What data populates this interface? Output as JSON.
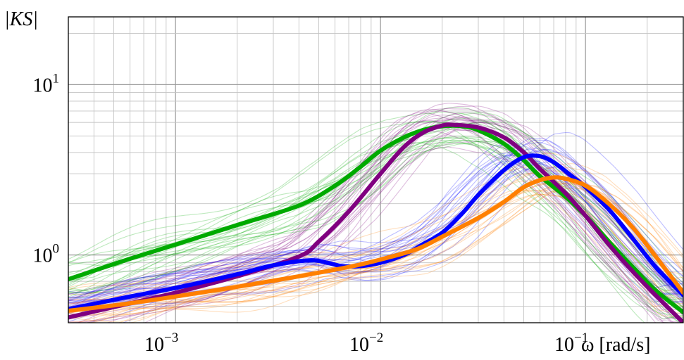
{
  "chart_data": {
    "type": "line",
    "xlabel": "ω [rad/s]",
    "ylabel": "|KS|",
    "xscale": "log",
    "yscale": "log",
    "xlim": [
      0.0003,
      0.3
    ],
    "ylim": [
      0.4,
      25
    ],
    "grid": true,
    "x_ticks": [
      {
        "value": 0.001,
        "base": "10",
        "exp": "−3"
      },
      {
        "value": 0.01,
        "base": "10",
        "exp": "−2"
      },
      {
        "value": 0.1,
        "base": "10",
        "exp": "−1"
      }
    ],
    "y_ticks": [
      {
        "value": 1,
        "base": "10",
        "exp": "0"
      },
      {
        "value": 10,
        "base": "10",
        "exp": "1"
      }
    ],
    "series": [
      {
        "color": "#00aa00",
        "x": [
          0.0003,
          0.0006,
          0.001,
          0.002,
          0.004,
          0.006,
          0.008,
          0.01,
          0.013,
          0.016,
          0.02,
          0.025,
          0.03,
          0.04,
          0.05,
          0.06,
          0.08,
          0.1,
          0.13,
          0.17,
          0.22,
          0.3
        ],
        "values": [
          0.72,
          0.95,
          1.15,
          1.5,
          1.95,
          2.55,
          3.3,
          4.1,
          4.9,
          5.4,
          5.7,
          5.7,
          5.4,
          4.5,
          3.6,
          2.9,
          2.2,
          1.7,
          1.2,
          0.85,
          0.62,
          0.46
        ]
      },
      {
        "color": "#800080",
        "x": [
          0.0003,
          0.0006,
          0.001,
          0.002,
          0.004,
          0.005,
          0.007,
          0.01,
          0.013,
          0.016,
          0.02,
          0.023,
          0.03,
          0.04,
          0.05,
          0.06,
          0.08,
          0.1,
          0.13,
          0.17,
          0.22,
          0.3
        ],
        "values": [
          0.43,
          0.52,
          0.6,
          0.75,
          0.98,
          1.2,
          1.8,
          3.0,
          4.3,
          5.2,
          5.75,
          5.8,
          5.6,
          4.9,
          4.0,
          3.2,
          2.3,
          1.7,
          1.15,
          0.8,
          0.58,
          0.4
        ]
      },
      {
        "color": "#0000ff",
        "x": [
          0.0003,
          0.0006,
          0.001,
          0.002,
          0.003,
          0.0045,
          0.0055,
          0.0065,
          0.008,
          0.01,
          0.013,
          0.016,
          0.02,
          0.025,
          0.03,
          0.04,
          0.05,
          0.06,
          0.07,
          0.08,
          0.1,
          0.13,
          0.17,
          0.22,
          0.3
        ],
        "values": [
          0.48,
          0.57,
          0.64,
          0.77,
          0.87,
          0.93,
          0.9,
          0.86,
          0.86,
          0.9,
          1.0,
          1.15,
          1.35,
          1.75,
          2.25,
          3.15,
          3.75,
          3.8,
          3.5,
          3.1,
          2.5,
          1.85,
          1.25,
          0.85,
          0.58
        ]
      },
      {
        "color": "#ff8000",
        "x": [
          0.0003,
          0.0006,
          0.001,
          0.002,
          0.004,
          0.006,
          0.008,
          0.01,
          0.015,
          0.02,
          0.03,
          0.04,
          0.05,
          0.06,
          0.07,
          0.08,
          0.1,
          0.13,
          0.17,
          0.22,
          0.3
        ],
        "values": [
          0.47,
          0.52,
          0.57,
          0.65,
          0.75,
          0.82,
          0.88,
          0.94,
          1.08,
          1.28,
          1.65,
          2.05,
          2.5,
          2.75,
          2.85,
          2.8,
          2.55,
          2.0,
          1.45,
          0.98,
          0.6
        ]
      }
    ]
  }
}
